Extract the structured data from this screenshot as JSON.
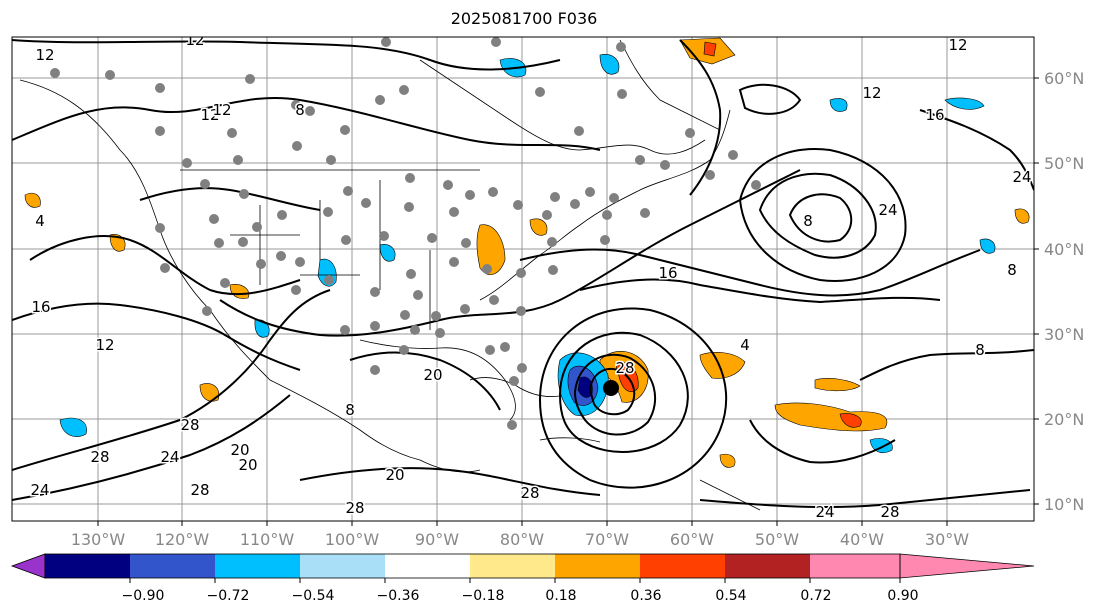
{
  "title": "2025081700 F036",
  "lon_labels": [
    "130°W",
    "120°W",
    "110°W",
    "100°W",
    "90°W",
    "80°W",
    "70°W",
    "60°W",
    "50°W",
    "40°W",
    "30°W"
  ],
  "lat_labels": [
    "60°N",
    "50°N",
    "40°N",
    "30°N",
    "20°N",
    "10°N"
  ],
  "colorbar": {
    "ticks": [
      "−0.90",
      "−0.72",
      "−0.54",
      "−0.36",
      "−0.18",
      "0.18",
      "0.36",
      "0.54",
      "0.72",
      "0.90"
    ],
    "colors": [
      "#9933cc",
      "#000080",
      "#3355cc",
      "#00bfff",
      "#aadff8",
      "#ffffff",
      "#ffe98a",
      "#ffa500",
      "#ff4000",
      "#b22222",
      "#ff88b0"
    ]
  },
  "contour_labels": [
    "12",
    "12",
    "12",
    "8",
    "12",
    "12",
    "16",
    "24",
    "24",
    "8",
    "16",
    "8",
    "12",
    "28",
    "28",
    "24",
    "20",
    "20",
    "28",
    "24",
    "28",
    "24",
    "28",
    "28",
    "28",
    "20",
    "8",
    "4",
    "12",
    "4",
    "8",
    "16",
    "20"
  ]
}
